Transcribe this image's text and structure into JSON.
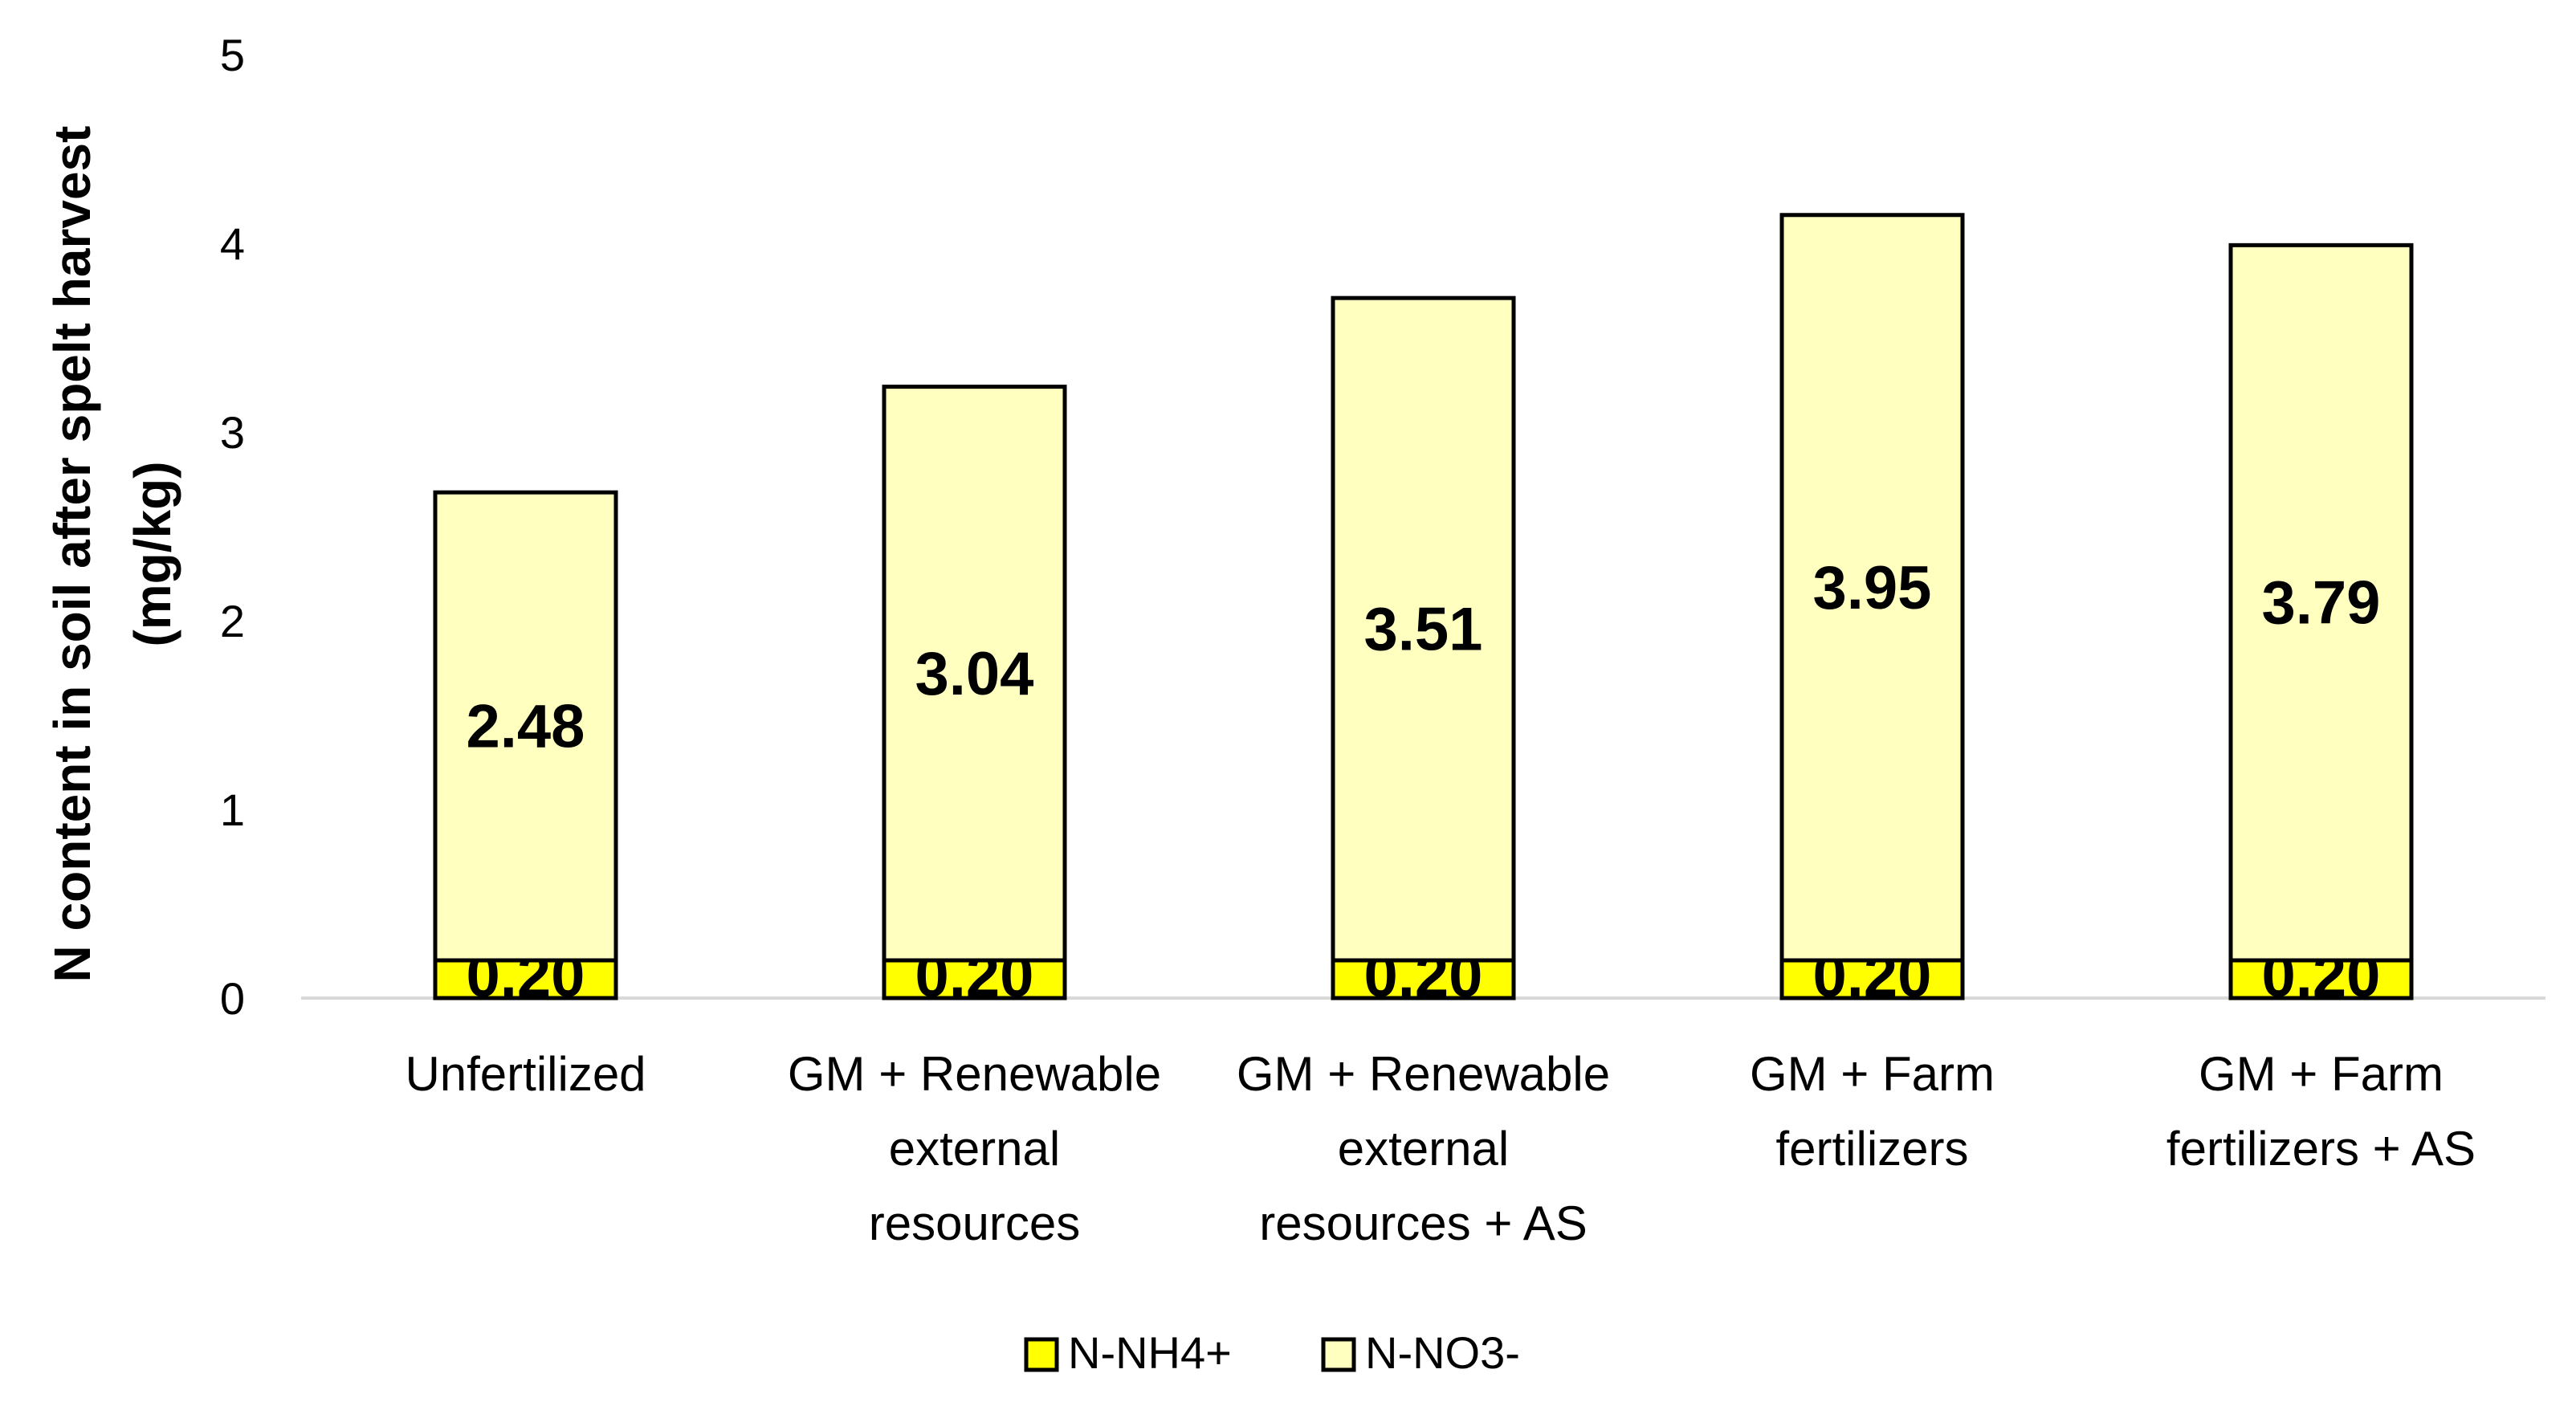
{
  "chart_data": {
    "type": "bar",
    "stacked": true,
    "title": "",
    "xlabel": "",
    "ylabel": [
      "N content in soil after spelt harvest",
      "(mg/kg)"
    ],
    "ylim": [
      0,
      5
    ],
    "yticks": [
      0,
      1,
      2,
      3,
      4,
      5
    ],
    "grid": false,
    "legend_position": "bottom",
    "categories": [
      [
        "Unfertilized"
      ],
      [
        "GM + Renewable",
        "external",
        "resources"
      ],
      [
        "GM + Renewable",
        "external",
        "resources + AS"
      ],
      [
        "GM + Farm",
        "fertilizers"
      ],
      [
        "GM + Farm",
        "fertilizers + AS"
      ]
    ],
    "series": [
      {
        "name": "N-NH4+",
        "color": "#ffff00",
        "values": [
          0.2,
          0.2,
          0.2,
          0.2,
          0.2
        ],
        "labels": [
          "0.20",
          "0.20",
          "0.20",
          "0.20",
          "0.20"
        ]
      },
      {
        "name": "N-NO3-",
        "color": "#ffffc0",
        "values": [
          2.48,
          3.04,
          3.51,
          3.95,
          3.79
        ],
        "labels": [
          "2.48",
          "3.04",
          "3.51",
          "3.95",
          "3.79"
        ]
      }
    ]
  }
}
